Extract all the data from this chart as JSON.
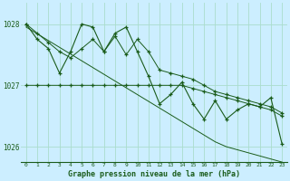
{
  "title": "Graphe pression niveau de la mer (hPa)",
  "background_color": "#cceeff",
  "grid_color": "#aaddcc",
  "line_color": "#1a5c1a",
  "x_values": [
    0,
    1,
    2,
    3,
    4,
    5,
    6,
    7,
    8,
    9,
    10,
    11,
    12,
    13,
    14,
    15,
    16,
    17,
    18,
    19,
    20,
    21,
    22,
    23
  ],
  "series_main": [
    1028.0,
    1027.75,
    1027.6,
    1027.2,
    1027.55,
    1028.0,
    1027.95,
    1027.55,
    1027.85,
    1027.95,
    1027.55,
    1027.15,
    1026.7,
    1026.85,
    1027.05,
    1026.7,
    1026.45,
    1026.75,
    1026.45,
    1026.6,
    1026.7,
    1026.65,
    1026.8,
    1026.05
  ],
  "series_step": [
    1027.0,
    1027.0,
    1027.0,
    1027.0,
    1027.0,
    1027.0,
    1027.0,
    1027.0,
    1027.0,
    1027.0,
    1027.0,
    1027.0,
    1027.0,
    1027.0,
    1027.0,
    1026.95,
    1026.9,
    1026.85,
    1026.8,
    1026.75,
    1026.7,
    1026.65,
    1026.6,
    1026.5
  ],
  "series_diag": [
    1027.95,
    1027.84,
    1027.73,
    1027.62,
    1027.51,
    1027.4,
    1027.29,
    1027.18,
    1027.07,
    1026.96,
    1026.85,
    1026.74,
    1026.63,
    1026.52,
    1026.41,
    1026.3,
    1026.19,
    1026.08,
    1026.0,
    1025.95,
    1025.9,
    1025.85,
    1025.8,
    1025.75
  ],
  "series_top": [
    1028.0,
    1027.85,
    1027.7,
    1027.55,
    1027.45,
    1027.6,
    1027.75,
    1027.55,
    1027.8,
    1027.5,
    1027.75,
    1027.55,
    1027.25,
    1027.2,
    1027.15,
    1027.1,
    1027.0,
    1026.9,
    1026.85,
    1026.8,
    1026.75,
    1026.7,
    1026.65,
    1026.55
  ],
  "ylim_min": 1025.75,
  "ylim_max": 1028.35,
  "yticks": [
    1026,
    1027,
    1028
  ],
  "xticks": [
    0,
    1,
    2,
    3,
    4,
    5,
    6,
    7,
    8,
    9,
    10,
    11,
    12,
    13,
    14,
    15,
    16,
    17,
    18,
    19,
    20,
    21,
    22,
    23
  ],
  "figwidth": 3.2,
  "figheight": 2.0,
  "dpi": 100
}
